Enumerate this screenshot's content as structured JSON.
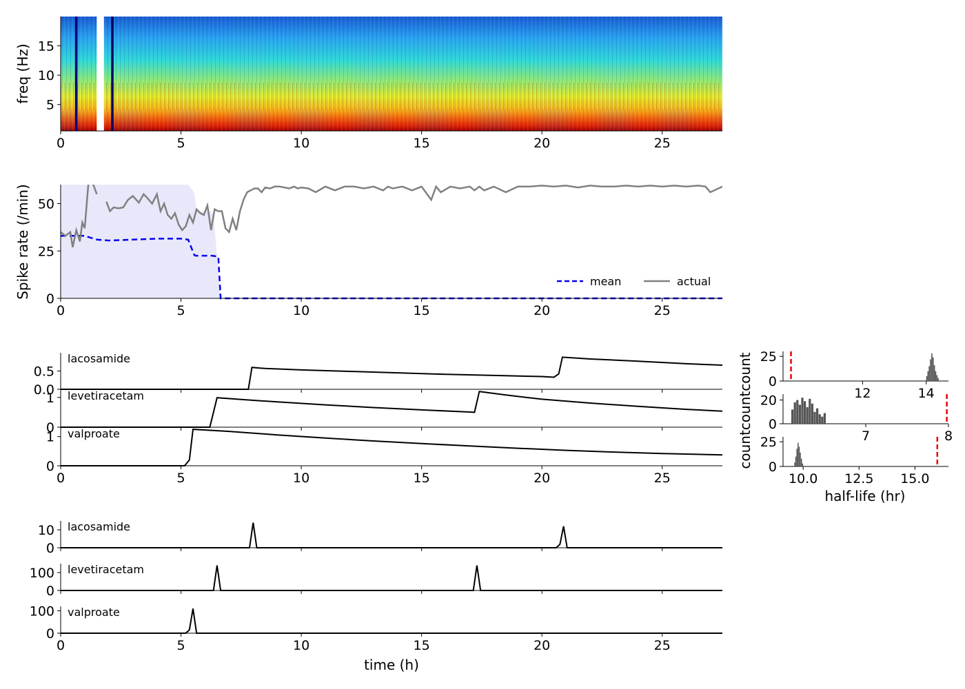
{
  "figure": {
    "xlabel_time": "time (h)",
    "colors": {
      "mean": "#0000ee",
      "actual": "#808080",
      "band": "#e8e8fa",
      "dose": "#000000",
      "threshold": "#ee0000",
      "hist": "#555555"
    }
  },
  "chart_data": [
    {
      "id": "spectrogram",
      "type": "heatmap",
      "ylabel": "freq (Hz)",
      "xlim": [
        0,
        27.5
      ],
      "ylim": [
        0.5,
        20
      ],
      "xticks": [
        0,
        5,
        10,
        15,
        20,
        25
      ],
      "yticks": [
        5,
        10,
        15
      ],
      "gaps_h": [
        [
          0.6,
          0.7
        ],
        [
          1.5,
          1.8
        ],
        [
          2.1,
          2.2
        ]
      ],
      "colormap": "jet"
    },
    {
      "id": "spike-rate",
      "type": "line",
      "ylabel": "Spike rate (/min)",
      "xlim": [
        0,
        27.5
      ],
      "ylim": [
        0,
        60
      ],
      "xticks": [
        0,
        5,
        10,
        15,
        20,
        25
      ],
      "yticks": [
        0,
        25,
        50
      ],
      "legend": [
        "mean",
        "actual"
      ],
      "legend_position": "lower-right",
      "series": [
        {
          "name": "mean",
          "style": "dashed",
          "x": [
            0,
            1.0,
            1.5,
            2.0,
            3.0,
            4.0,
            5.0,
            5.3,
            5.55,
            5.6,
            6.3,
            6.55,
            6.65,
            27.5
          ],
          "y": [
            33,
            33,
            31,
            30.5,
            31,
            31.5,
            31.5,
            31,
            23,
            22.5,
            22.5,
            22,
            0,
            0
          ]
        },
        {
          "name": "actual",
          "style": "solid",
          "x": [
            0,
            0.2,
            0.4,
            0.5,
            0.65,
            0.8,
            0.9,
            1.0,
            1.15,
            1.3,
            1.5,
            1.75,
            1.9,
            2.05,
            2.2,
            2.4,
            2.6,
            2.8,
            3.0,
            3.25,
            3.45,
            3.6,
            3.8,
            4.0,
            4.15,
            4.3,
            4.45,
            4.6,
            4.75,
            4.9,
            5.05,
            5.2,
            5.35,
            5.5,
            5.65,
            5.8,
            5.95,
            6.1,
            6.25,
            6.4,
            6.55,
            6.7,
            6.85,
            7.0,
            7.15,
            7.3,
            7.45,
            7.6,
            7.75,
            7.9,
            8.05,
            8.2,
            8.35,
            8.5,
            8.7,
            8.9,
            9.1,
            9.3,
            9.5,
            9.7,
            9.85,
            10.0,
            10.3,
            10.6,
            11.0,
            11.4,
            11.8,
            12.2,
            12.6,
            13.0,
            13.4,
            13.6,
            13.8,
            14.2,
            14.6,
            15.0,
            15.4,
            15.6,
            15.8,
            16.2,
            16.6,
            17.0,
            17.2,
            17.4,
            17.6,
            18.0,
            18.5,
            19.0,
            19.5,
            20.0,
            20.5,
            21.0,
            21.5,
            22.0,
            22.5,
            23.0,
            23.5,
            24.0,
            24.5,
            25.0,
            25.5,
            26.0,
            26.5,
            26.8,
            27.0,
            27.5
          ],
          "y": [
            35,
            33,
            35,
            27,
            36,
            30,
            40,
            37,
            60,
            62,
            55,
            49,
            51,
            46,
            48,
            47.5,
            48,
            52,
            54,
            50.5,
            55,
            53,
            50,
            55,
            46,
            50,
            44,
            42,
            45,
            39,
            36,
            38,
            44,
            40,
            47,
            45,
            44,
            49,
            36,
            47,
            46,
            46,
            37,
            35,
            42,
            36,
            46,
            52,
            56,
            57,
            58,
            58,
            56,
            58.5,
            58,
            59,
            59,
            58.5,
            58,
            59,
            58,
            58.5,
            58,
            56,
            59,
            57,
            59,
            59,
            58,
            59,
            57,
            59,
            58,
            59,
            57,
            59,
            52,
            59,
            56,
            59,
            58,
            59,
            57,
            59,
            57,
            59,
            56,
            59,
            59,
            59.5,
            59,
            59.5,
            58.5,
            59.5,
            59,
            59,
            59.5,
            59,
            59.5,
            59,
            59.5,
            59,
            59.5,
            59,
            56,
            59
          ],
          "gaps_h": [
            [
              1.55,
              1.8
            ]
          ]
        },
        {
          "name": "band",
          "style": "fill",
          "x": [
            0,
            5.3,
            5.55,
            5.65,
            6.25,
            6.35,
            6.65
          ],
          "upper": [
            60,
            60,
            56,
            46,
            46,
            44,
            0
          ],
          "lower": [
            0,
            0,
            0,
            0,
            0,
            0,
            0
          ]
        }
      ]
    },
    {
      "id": "concentration",
      "type": "line",
      "xlim": [
        0,
        27.5
      ],
      "xticks": [
        0,
        5,
        10,
        15,
        20,
        25
      ],
      "panels": [
        {
          "name": "lacosamide",
          "ylim": [
            0,
            1
          ],
          "ytick_labels": [
            "0.0",
            "0.5"
          ],
          "yticks": [
            0,
            0.5
          ],
          "x": [
            0,
            7.8,
            7.95,
            8.5,
            10,
            12,
            14,
            16,
            18,
            20,
            20.5,
            20.7,
            20.85,
            22,
            24,
            26,
            27.5
          ],
          "y": [
            0,
            0,
            0.6,
            0.57,
            0.53,
            0.49,
            0.45,
            0.41,
            0.38,
            0.35,
            0.33,
            0.42,
            0.88,
            0.83,
            0.77,
            0.7,
            0.66
          ]
        },
        {
          "name": "levetiracetam",
          "ylim": [
            0,
            1.25
          ],
          "ytick_labels": [
            "0",
            "1"
          ],
          "yticks": [
            0,
            1
          ],
          "x": [
            0,
            6.2,
            6.5,
            7.5,
            9,
            11,
            13,
            15,
            17,
            17.2,
            17.4,
            18.5,
            20,
            22,
            24,
            26,
            27.5
          ],
          "y": [
            0,
            0,
            0.99,
            0.93,
            0.85,
            0.75,
            0.66,
            0.58,
            0.51,
            0.5,
            1.2,
            1.08,
            0.94,
            0.81,
            0.7,
            0.6,
            0.54
          ]
        },
        {
          "name": "valproate",
          "ylim": [
            0,
            1.3
          ],
          "ytick_labels": [
            "0",
            "1"
          ],
          "yticks": [
            0,
            1
          ],
          "x": [
            0,
            5.15,
            5.35,
            5.5,
            7,
            9,
            11,
            13,
            15,
            17,
            19,
            21,
            23,
            25,
            27.5
          ],
          "y": [
            0,
            0,
            0.2,
            1.25,
            1.18,
            1.06,
            0.95,
            0.85,
            0.76,
            0.68,
            0.6,
            0.53,
            0.47,
            0.42,
            0.37
          ]
        }
      ]
    },
    {
      "id": "half-life",
      "type": "bar",
      "xlabel": "half-life (hr)",
      "ylabel": "countcountcount",
      "panels": [
        {
          "name": "lacosamide",
          "xlim": [
            9.5,
            14.7
          ],
          "xticks": [
            12,
            14
          ],
          "ylim": [
            0,
            30
          ],
          "yticks": [
            0,
            25
          ],
          "threshold": 9.75,
          "bins_x": [
            14.0,
            14.04,
            14.08,
            14.12,
            14.16,
            14.2,
            14.24,
            14.28,
            14.32,
            14.36
          ],
          "counts": [
            5,
            10,
            15,
            22,
            28,
            24,
            16,
            10,
            6,
            3
          ]
        },
        {
          "name": "levetiracetam",
          "xlim": [
            6.0,
            8.0
          ],
          "xticks": [
            7,
            8
          ],
          "ylim": [
            0,
            25
          ],
          "yticks": [
            0,
            20
          ],
          "threshold": 7.98,
          "bins_x": [
            6.1,
            6.13,
            6.16,
            6.19,
            6.22,
            6.25,
            6.28,
            6.31,
            6.34,
            6.37,
            6.4,
            6.43,
            6.46,
            6.49
          ],
          "counts": [
            12,
            18,
            20,
            16,
            22,
            19,
            14,
            21,
            17,
            10,
            13,
            8,
            6,
            9
          ]
        },
        {
          "name": "valproate",
          "xlim": [
            9.1,
            16.5
          ],
          "xticks": [
            10.0,
            12.5,
            15.0
          ],
          "xtick_labels": [
            "10.0",
            "12.5",
            "15.0"
          ],
          "ylim": [
            0,
            30
          ],
          "yticks": [
            0,
            25
          ],
          "threshold": 16.0,
          "bins_x": [
            9.6,
            9.65,
            9.7,
            9.75,
            9.8,
            9.85,
            9.9,
            9.95
          ],
          "counts": [
            4,
            10,
            18,
            24,
            20,
            14,
            8,
            3
          ]
        }
      ]
    },
    {
      "id": "dose",
      "type": "line",
      "xlabel": "time (h)",
      "xlim": [
        0,
        27.5
      ],
      "xticks": [
        0,
        5,
        10,
        15,
        20,
        25
      ],
      "panels": [
        {
          "name": "lacosamide",
          "ylim": [
            0,
            15
          ],
          "yticks": [
            0,
            10
          ],
          "x": [
            0,
            7.85,
            8.0,
            8.15,
            20.6,
            20.75,
            20.9,
            21.05,
            27.5
          ],
          "y": [
            0,
            0,
            14,
            0,
            0,
            2,
            12,
            0,
            0
          ]
        },
        {
          "name": "levetiracetam",
          "ylim": [
            0,
            150
          ],
          "yticks": [
            0,
            100
          ],
          "x": [
            0,
            6.35,
            6.5,
            6.65,
            17.15,
            17.3,
            17.45,
            27.5
          ],
          "y": [
            0,
            0,
            140,
            0,
            0,
            140,
            0,
            0
          ]
        },
        {
          "name": "valproate",
          "ylim": [
            0,
            120
          ],
          "yticks": [
            0,
            100
          ],
          "x": [
            0,
            5.2,
            5.35,
            5.5,
            5.65,
            27.5
          ],
          "y": [
            0,
            0,
            15,
            110,
            0,
            0
          ]
        }
      ]
    }
  ]
}
